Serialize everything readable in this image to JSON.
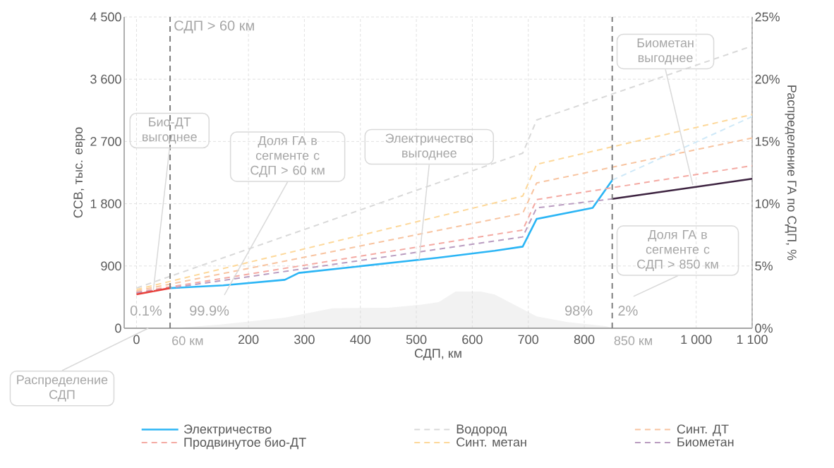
{
  "chart_data": {
    "type": "line",
    "xlabel": "СДП, км",
    "ylabel": "ССВ, тыс. евро",
    "y2label": "Распределение ГА по СДП, %",
    "xlim": [
      -22,
      1100
    ],
    "xticks": [
      0,
      200,
      300,
      400,
      500,
      600,
      700,
      800,
      {
        "value": 1000,
        "label": "1 000"
      },
      {
        "value": 1100,
        "label": "1 100"
      }
    ],
    "ylim": [
      0,
      4500
    ],
    "yticks": [
      0,
      900,
      {
        "value": 1800,
        "label": "1 800"
      },
      {
        "value": 2700,
        "label": "2 700"
      },
      {
        "value": 3600,
        "label": "3 600"
      },
      {
        "value": 4500,
        "label": "4 500"
      }
    ],
    "y2lim": [
      0,
      25
    ],
    "y2ticks": [
      {
        "value": 0,
        "label": "0%"
      },
      {
        "value": 5,
        "label": "5%"
      },
      {
        "value": 10,
        "label": "10%"
      },
      {
        "value": 15,
        "label": "15%"
      },
      {
        "value": 20,
        "label": "20%"
      },
      {
        "value": 25,
        "label": "25%"
      }
    ],
    "grid": true,
    "legend": "bottom",
    "marker": "none",
    "series": [
      {
        "type": "area",
        "axis": "y2",
        "color": "#f2f2f2",
        "x": [
          0,
          80,
          150,
          265,
          350,
          450,
          510,
          540,
          570,
          615,
          640,
          715,
          770,
          840,
          850
        ],
        "values": [
          0,
          0.05,
          0.3,
          0.85,
          1.6,
          1.65,
          1.9,
          2.1,
          2.95,
          2.95,
          2.7,
          0.95,
          0.5,
          0.15,
          0
        ]
      },
      {
        "name": "Электричество",
        "color": "#2bb5f5",
        "line_style": "solid",
        "x": [
          60,
          155,
          265,
          290,
          540,
          640,
          690,
          715,
          815,
          850
        ],
        "values": [
          580,
          620,
          700,
          800,
          1020,
          1120,
          1180,
          1580,
          1740,
          2140
        ]
      },
      {
        "name": "Водород",
        "color": "#d9d9d9",
        "line_style": "dashed",
        "x": [
          0,
          690,
          715,
          1100
        ],
        "values": [
          580,
          2530,
          3010,
          4080
        ]
      },
      {
        "name": "Синт. ДТ",
        "color": "#f8c4a0",
        "line_style": "dashed",
        "x": [
          0,
          690,
          715,
          1100
        ],
        "values": [
          540,
          1660,
          2100,
          2750
        ]
      },
      {
        "name": "Продвинутое био-ДТ",
        "color": "#f4aaa3",
        "line_style": "dashed",
        "x": [
          0,
          690,
          715,
          1100
        ],
        "values": [
          520,
          1420,
          1860,
          2350
        ]
      },
      {
        "name": "Синт. метан",
        "color": "#fdd89a",
        "line_style": "dashed",
        "x": [
          0,
          690,
          715,
          1100
        ],
        "values": [
          560,
          1910,
          2370,
          3090
        ]
      },
      {
        "name": "Биометан",
        "color": "#b99cc0",
        "line_style": "dashed",
        "x": [
          0,
          690,
          715,
          850
        ],
        "values": [
          510,
          1320,
          1740,
          1870
        ]
      },
      {
        "color": "#cfe9f8",
        "line_style": "dashed",
        "x": [
          850,
          1100
        ],
        "values": [
          2140,
          3060
        ]
      },
      {
        "color": "#e8413c",
        "line_style": "solid",
        "x": [
          0,
          60
        ],
        "values": [
          490,
          580
        ]
      },
      {
        "color": "#3d2340",
        "line_style": "solid",
        "x": [
          850,
          1100
        ],
        "values": [
          1870,
          2160
        ]
      }
    ],
    "ref_lines": [
      {
        "axis": "x",
        "value": 60,
        "label": "60 км",
        "color": "#7f7f7f",
        "line_style": "dashed"
      },
      {
        "axis": "x",
        "value": 850,
        "label": "850 км",
        "color": "#7f7f7f",
        "line_style": "dashed"
      }
    ],
    "annotations": [
      {
        "text": "СДП > 60 км",
        "x": 60,
        "y": 4500
      },
      {
        "text": "Био-ДТ выгоднее",
        "x": 30,
        "y": 540
      },
      "Доля ГА в сегменте с СДП > 60 км",
      {
        "text": "Электричество выгоднее",
        "x": 505,
        "y": 990
      },
      {
        "text": "Биометан выгоднее",
        "x": 994,
        "y": 2070
      },
      "Доля ГА в сегменте с СДП > 850 км",
      {
        "text": "Распределение СДП",
        "x": 21,
        "y": 0
      },
      "0.1%",
      "99.9%",
      "98%",
      "2%"
    ]
  }
}
